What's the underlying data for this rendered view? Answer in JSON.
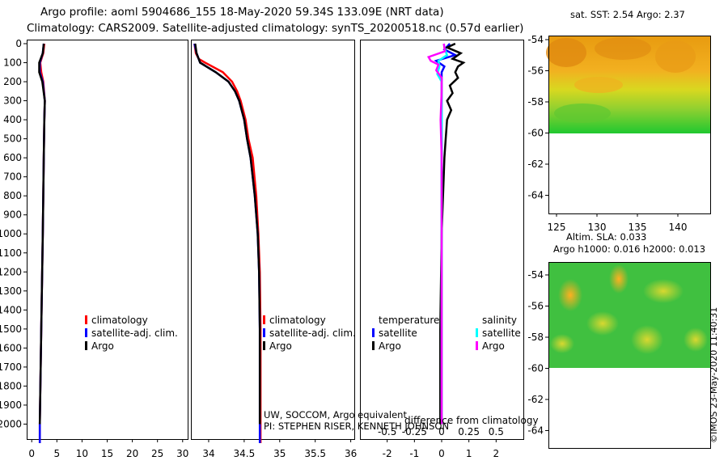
{
  "titles": {
    "line1": "Argo profile: aoml 5904686_155 18-May-2020 59.34S 133.09E (NRT data)",
    "line2": "Climatology: CARS2009. Satellite-adjusted climatology: synTS_20200518.nc (0.57d earlier)"
  },
  "maps": {
    "sst_title": "sat. SST: 2.54 Argo: 2.37",
    "sla_title_1": "Altim. SLA: 0.033",
    "sla_title_2": "Argo h1000: 0.016 h2000: 0.013",
    "lat_ticks": [
      "-54",
      "-56",
      "-58",
      "-60",
      "-62",
      "-64"
    ],
    "lon_ticks": [
      "125",
      "130",
      "135",
      "140"
    ]
  },
  "credits": {
    "line1": "UW, SOCCOM, Argo equivalent",
    "line2": "PI: STEPHEN RISER, KENNETH JOHNSON",
    "vertical": "©IMOS 23-May-2020 11:40:31"
  },
  "colors": {
    "climatology": "#ff0000",
    "satellite": "#0000ff",
    "argo": "#000000",
    "salinity_satellite": "#00ffff",
    "salinity_argo": "#ff00ff"
  },
  "chart_data": [
    {
      "type": "line",
      "name": "temperature",
      "ylim": [
        0,
        2100
      ],
      "xlim": [
        -1,
        31
      ],
      "y_inverted": true,
      "yticks": [
        0,
        100,
        200,
        300,
        400,
        500,
        600,
        700,
        800,
        900,
        1000,
        1100,
        1200,
        1300,
        1400,
        1500,
        1600,
        1700,
        1800,
        1900,
        2000
      ],
      "xticks": [
        0,
        5,
        10,
        15,
        20,
        25,
        30
      ],
      "legend": [
        "climatology",
        "satellite-adj. clim.",
        "Argo"
      ],
      "series": [
        {
          "name": "climatology",
          "color": "#ff0000",
          "depth": [
            0,
            50,
            100,
            150,
            200,
            300,
            400,
            600,
            800,
            1000,
            1500,
            2000,
            2100
          ],
          "values": [
            2.5,
            2.3,
            1.7,
            1.9,
            2.3,
            2.6,
            2.5,
            2.4,
            2.3,
            2.2,
            1.9,
            1.6,
            1.6
          ]
        },
        {
          "name": "satellite-adj. clim.",
          "color": "#0000ff",
          "depth": [
            0,
            50,
            100,
            150,
            200,
            300,
            400,
            600,
            800,
            1000,
            1500,
            2000,
            2100
          ],
          "values": [
            2.4,
            2.2,
            1.6,
            1.6,
            2.2,
            2.6,
            2.5,
            2.4,
            2.3,
            2.2,
            1.9,
            1.6,
            1.6
          ]
        },
        {
          "name": "Argo",
          "color": "#000000",
          "depth": [
            0,
            50,
            100,
            150,
            200,
            300,
            400,
            600,
            800,
            1000,
            1500,
            2000
          ],
          "values": [
            2.4,
            2.2,
            1.5,
            1.5,
            2.1,
            2.6,
            2.5,
            2.4,
            2.3,
            2.2,
            1.9,
            1.6
          ]
        }
      ]
    },
    {
      "type": "line",
      "name": "salinity",
      "ylim": [
        0,
        2100
      ],
      "xlim": [
        33.75,
        36.05
      ],
      "y_inverted": true,
      "xticks": [
        34,
        34.5,
        35,
        35.5,
        36
      ],
      "legend": [
        "climatology",
        "satellite-adj. clim.",
        "Argo"
      ],
      "series": [
        {
          "name": "climatology",
          "color": "#ff0000",
          "depth": [
            0,
            50,
            80,
            100,
            150,
            200,
            250,
            300,
            400,
            500,
            600,
            800,
            1000,
            1200,
            1500,
            2000,
            2100
          ],
          "values": [
            33.8,
            33.82,
            33.86,
            33.95,
            34.2,
            34.33,
            34.4,
            34.45,
            34.52,
            34.56,
            34.62,
            34.67,
            34.7,
            34.72,
            34.73,
            34.73,
            34.73
          ]
        },
        {
          "name": "satellite-adj. clim.",
          "color": "#0000ff",
          "depth": [
            0,
            50,
            100,
            150,
            200,
            250,
            300,
            400,
            500,
            600,
            800,
            1000,
            1200,
            1500,
            2000,
            2100
          ],
          "values": [
            33.8,
            33.83,
            33.88,
            34.1,
            34.28,
            34.37,
            34.43,
            34.5,
            34.54,
            34.59,
            34.65,
            34.69,
            34.71,
            34.72,
            34.72,
            34.72
          ]
        },
        {
          "name": "Argo",
          "color": "#000000",
          "depth": [
            0,
            50,
            100,
            150,
            200,
            250,
            300,
            400,
            500,
            600,
            800,
            1000,
            1200,
            1500,
            2000
          ],
          "values": [
            33.81,
            33.83,
            33.88,
            34.1,
            34.28,
            34.37,
            34.43,
            34.5,
            34.54,
            34.59,
            34.65,
            34.69,
            34.71,
            34.72,
            34.72
          ]
        }
      ]
    },
    {
      "type": "line",
      "name": "difference from climatology",
      "ylim": [
        0,
        2100
      ],
      "xlim": [
        -3,
        3
      ],
      "y_inverted": true,
      "xticks": [
        -2,
        -1,
        0,
        1,
        2
      ],
      "xticks_salinity": [
        -0.5,
        -0.25,
        0,
        0.25,
        0.5
      ],
      "xlabel": "difference from climatology",
      "legend_groups": [
        "temperature",
        "salinity"
      ],
      "legend": [
        "satellite",
        "Argo",
        "satellite",
        "Argo"
      ],
      "series": [
        {
          "name": "temperature satellite",
          "color": "#0000ff",
          "depth": [
            0,
            30,
            60,
            90,
            120,
            150,
            200,
            300,
            500,
            1000,
            1500,
            2000
          ],
          "values": [
            0.3,
            0.1,
            0.5,
            -0.2,
            0.1,
            0.0,
            0.0,
            0.0,
            0.0,
            0.0,
            0.0,
            0.0
          ]
        },
        {
          "name": "temperature Argo",
          "color": "#000000",
          "depth": [
            0,
            20,
            50,
            80,
            100,
            120,
            150,
            180,
            220,
            260,
            300,
            350,
            400,
            500,
            600,
            800,
            1000,
            1500,
            2000
          ],
          "values": [
            0.5,
            0.2,
            0.7,
            0.4,
            0.8,
            0.6,
            0.5,
            0.6,
            0.3,
            0.4,
            0.2,
            0.35,
            0.2,
            0.15,
            0.1,
            0.05,
            0.0,
            -0.05,
            -0.05
          ]
        },
        {
          "name": "salinity satellite",
          "color": "#00ffff",
          "depth": [
            0,
            30,
            60,
            90,
            120,
            160,
            200,
            300,
            500,
            1000,
            1500,
            2000
          ],
          "values": [
            0.02,
            0.03,
            0.05,
            -0.03,
            -0.02,
            -0.04,
            0.0,
            0.0,
            0.0,
            0.0,
            0.0,
            0.0
          ]
        },
        {
          "name": "salinity Argo",
          "color": "#ff00ff",
          "depth": [
            0,
            40,
            70,
            90,
            110,
            140,
            180,
            250,
            400,
            600,
            1000,
            1500,
            2000
          ],
          "values": [
            0.02,
            0.03,
            -0.12,
            -0.1,
            -0.03,
            -0.05,
            0.0,
            0.0,
            -0.01,
            0.0,
            0.0,
            0.0,
            0.0
          ]
        }
      ]
    }
  ]
}
